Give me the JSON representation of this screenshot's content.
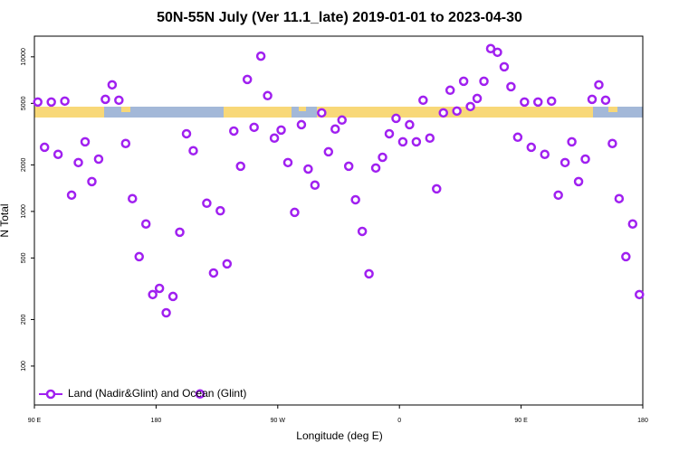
{
  "chart_data": {
    "type": "scatter",
    "title": "50N-55N July (Ver 11.1_late)   2019-01-01 to 2023-04-30",
    "x_label": "Longitude (deg E)",
    "y_label": "N Total",
    "log_y": true,
    "legend_position": "bottom left",
    "xlim": [
      90,
      540
    ],
    "xticks": [
      {
        "value": 90,
        "label": "90 E"
      },
      180,
      {
        "value": 270,
        "label": "90 W"
      },
      {
        "value": 360,
        "label": "0"
      },
      {
        "value": 450,
        "label": "90 E"
      },
      {
        "value": 540,
        "label": "180"
      }
    ],
    "ylim": [
      56,
      13600
    ],
    "yticks": [
      100,
      200,
      500,
      1000,
      2000,
      5000,
      10000
    ],
    "x": [
      92.5,
      97.5,
      102.5,
      107.5,
      112.5,
      117.5,
      122.5,
      127.5,
      132.5,
      137.5,
      142.5,
      147.5,
      152.5,
      157.5,
      162.5,
      167.5,
      172.5,
      177.5,
      182.5,
      187.5,
      192.5,
      197.5,
      202.5,
      207.5,
      212.5,
      217.5,
      222.5,
      227.5,
      232.5,
      237.5,
      242.5,
      247.5,
      252.5,
      257.5,
      262.5,
      267.5,
      272.5,
      277.5,
      282.5,
      287.5,
      292.5,
      297.5,
      302.5,
      307.5,
      312.5,
      317.5,
      322.5,
      327.5,
      332.5,
      337.5,
      342.5,
      347.5,
      352.5,
      357.5,
      362.5,
      367.5,
      372.5,
      377.5,
      382.5,
      387.5,
      392.5,
      397.5,
      402.5,
      407.5,
      412.5,
      417.5,
      422.5,
      427.5,
      432.5,
      437.5,
      442.5,
      447.5,
      452.5,
      457.5,
      462.5,
      467.5,
      472.5,
      477.5,
      482.5,
      487.5,
      492.5,
      497.5,
      502.5,
      507.5,
      512.5,
      517.5,
      522.5,
      527.5,
      532.5,
      537.5
    ],
    "series": [
      {
        "name": "Land (Nadir&Glint) and Ocean (Glint)",
        "color": "#a020f0",
        "values": [
          5100,
          2600,
          5100,
          2340,
          5170,
          1275,
          2070,
          2820,
          1560,
          2180,
          5310,
          6590,
          5240,
          2750,
          1210,
          510,
          830,
          290,
          318,
          221,
          282,
          734,
          3180,
          2470,
          66,
          1130,
          400,
          1010,
          458,
          3310,
          1960,
          7140,
          3500,
          10100,
          5610,
          2980,
          3360,
          2070,
          986,
          3640,
          1880,
          1480,
          4340,
          2430,
          3410,
          3900,
          1960,
          1190,
          743,
          395,
          1910,
          2240,
          3180,
          4000,
          2820,
          3640,
          2820,
          5240,
          2980,
          1400,
          4340,
          6080,
          4460,
          6950,
          4770,
          5380,
          6950,
          11300,
          10700,
          8620,
          6410,
          3020,
          5100,
          2600,
          5100,
          2340,
          5170,
          1275,
          2070,
          2820,
          1560,
          2180,
          5310,
          6590,
          5240,
          2750,
          1210,
          510,
          830,
          290
        ]
      }
    ]
  }
}
